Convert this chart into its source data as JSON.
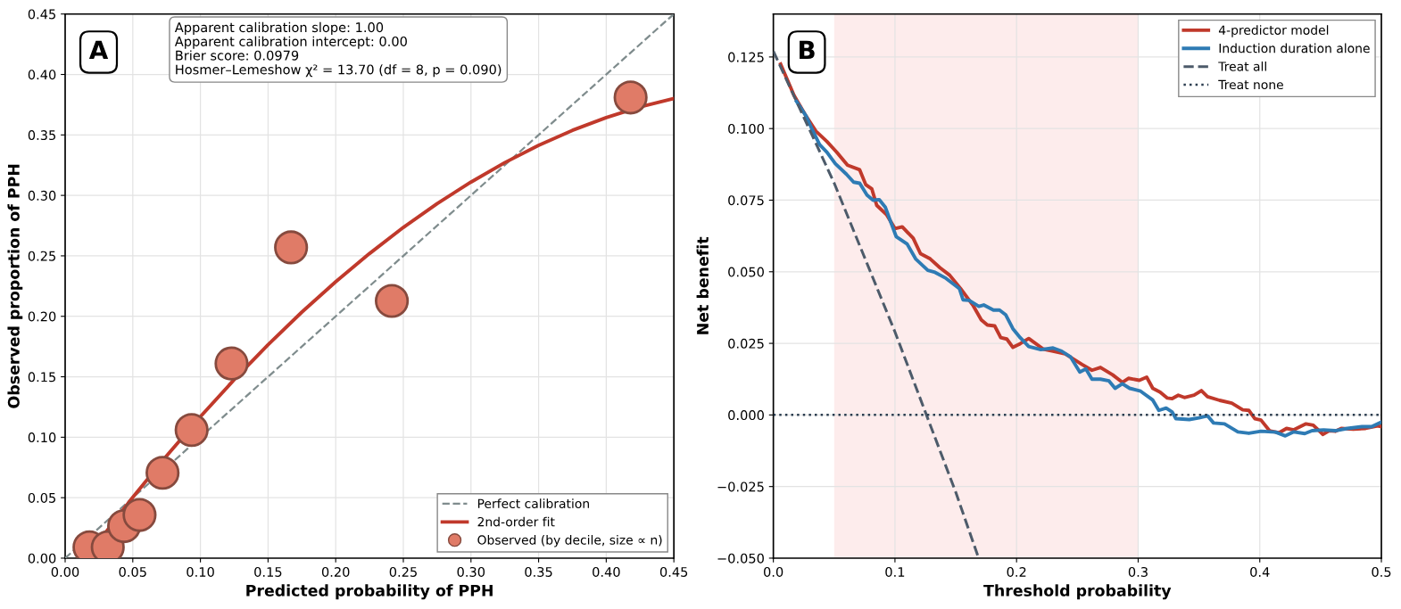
{
  "chart_data": [
    {
      "type": "scatter",
      "xlabel": "Predicted probability of PPH",
      "ylabel": "Observed proportion of PPH",
      "annotations": [
        "A",
        "Apparent calibration slope: 1.00\nApparent calibration intercept: 0.00\nBrier score: 0.0979\nHosmer–Lemeshow χ² = 13.70 (df = 8, p = 0.090)"
      ],
      "xlim": [
        0,
        0.45
      ],
      "ylim": [
        0,
        0.45
      ],
      "xticks": [
        {
          "value": 0,
          "label": "0.00"
        },
        {
          "value": 0.05,
          "label": "0.05"
        },
        {
          "value": 0.1,
          "label": "0.10"
        },
        {
          "value": 0.15,
          "label": "0.15"
        },
        {
          "value": 0.2,
          "label": "0.20"
        },
        {
          "value": 0.25,
          "label": "0.25"
        },
        {
          "value": 0.3,
          "label": "0.30"
        },
        {
          "value": 0.35,
          "label": "0.35"
        },
        {
          "value": 0.4,
          "label": "0.40"
        },
        {
          "value": 0.45,
          "label": "0.45"
        }
      ],
      "yticks": [
        {
          "value": 0,
          "label": "0.00"
        },
        {
          "value": 0.05,
          "label": "0.05"
        },
        {
          "value": 0.1,
          "label": "0.10"
        },
        {
          "value": 0.15,
          "label": "0.15"
        },
        {
          "value": 0.2,
          "label": "0.20"
        },
        {
          "value": 0.25,
          "label": "0.25"
        },
        {
          "value": 0.3,
          "label": "0.30"
        },
        {
          "value": 0.35,
          "label": "0.35"
        },
        {
          "value": 0.4,
          "label": "0.40"
        },
        {
          "value": 0.45,
          "label": "0.45"
        }
      ],
      "grid": true,
      "legend": "bottom right",
      "series": [
        {
          "name": "Perfect calibration",
          "type": "line",
          "line_style": "dashed",
          "color": "#7f8c8d",
          "x": [
            0,
            0.45
          ],
          "values": [
            0,
            0.45
          ]
        },
        {
          "name": "2nd-order fit",
          "type": "line",
          "line_style": "solid",
          "color": "#c0392b",
          "x": [
            0.02,
            0.05,
            0.075,
            0.1,
            0.125,
            0.15,
            0.175,
            0.2,
            0.225,
            0.25,
            0.275,
            0.3,
            0.325,
            0.35,
            0.375,
            0.4,
            0.425,
            0.45
          ],
          "values": [
            0.0068,
            0.0503,
            0.0846,
            0.117,
            0.1477,
            0.1765,
            0.2035,
            0.2286,
            0.2519,
            0.2735,
            0.2932,
            0.311,
            0.3271,
            0.3414,
            0.3538,
            0.3643,
            0.3732,
            0.3801
          ]
        },
        {
          "name": "Observed (by decile, size ∝ n)",
          "type": "scatter",
          "marker": "circle",
          "color": "#e07b67",
          "x": [
            0.018,
            0.0315,
            0.0436,
            0.055,
            0.072,
            0.0935,
            0.123,
            0.167,
            0.2415,
            0.418
          ],
          "values": [
            0.009,
            0.009,
            0.0265,
            0.0357,
            0.0706,
            0.106,
            0.161,
            0.257,
            0.2127,
            0.381
          ]
        }
      ]
    },
    {
      "type": "line",
      "xlabel": "Threshold probability",
      "ylabel": "Net benefit",
      "annotations": [
        "B"
      ],
      "xlim": [
        0,
        0.5
      ],
      "ylim": [
        -0.05,
        0.14
      ],
      "xticks": [
        {
          "value": 0,
          "label": "0.0"
        },
        {
          "value": 0.1,
          "label": "0.1"
        },
        {
          "value": 0.2,
          "label": "0.2"
        },
        {
          "value": 0.3,
          "label": "0.3"
        },
        {
          "value": 0.4,
          "label": "0.4"
        },
        {
          "value": 0.5,
          "label": "0.5"
        }
      ],
      "yticks": [
        {
          "value": -0.05,
          "label": "−0.050"
        },
        {
          "value": -0.025,
          "label": "−0.025"
        },
        {
          "value": 0,
          "label": "0.000"
        },
        {
          "value": 0.025,
          "label": "0.025"
        },
        {
          "value": 0.05,
          "label": "0.050"
        },
        {
          "value": 0.075,
          "label": "0.075"
        },
        {
          "value": 0.1,
          "label": "0.100"
        },
        {
          "value": 0.125,
          "label": "0.125"
        }
      ],
      "grid": true,
      "legend": "top right",
      "bands": [
        {
          "axis": "x",
          "from": 0.05,
          "to": 0.3,
          "color": "#fdecec"
        }
      ],
      "series": [
        {
          "name": "4-predictor model",
          "line_style": "solid",
          "color": "#c0392b",
          "x": [
            0.006,
            0.017,
            0.027,
            0.035,
            0.044,
            0.052,
            0.061,
            0.071,
            0.076,
            0.081,
            0.085,
            0.093,
            0.1,
            0.106,
            0.115,
            0.121,
            0.129,
            0.137,
            0.145,
            0.154,
            0.164,
            0.171,
            0.176,
            0.182,
            0.187,
            0.192,
            0.197,
            0.203,
            0.21,
            0.222,
            0.23,
            0.24,
            0.254,
            0.262,
            0.269,
            0.279,
            0.287,
            0.292,
            0.301,
            0.307,
            0.312,
            0.318,
            0.324,
            0.328,
            0.333,
            0.338,
            0.346,
            0.352,
            0.357,
            0.367,
            0.377,
            0.386,
            0.391,
            0.396,
            0.401,
            0.408,
            0.416,
            0.422,
            0.428,
            0.438,
            0.444,
            0.452,
            0.457,
            0.462,
            0.467,
            0.477,
            0.487,
            0.497,
            0.5
          ],
          "values": [
            0.1225,
            0.1116,
            0.1043,
            0.0991,
            0.0955,
            0.0918,
            0.0872,
            0.0856,
            0.0804,
            0.0789,
            0.0732,
            0.07,
            0.0651,
            0.0657,
            0.0617,
            0.0563,
            0.0545,
            0.0514,
            0.0488,
            0.0441,
            0.0384,
            0.0332,
            0.0314,
            0.0311,
            0.027,
            0.0265,
            0.0236,
            0.0249,
            0.0267,
            0.023,
            0.0223,
            0.0213,
            0.0176,
            0.0156,
            0.0166,
            0.014,
            0.0114,
            0.0128,
            0.0121,
            0.0132,
            0.0093,
            0.008,
            0.0059,
            0.0057,
            0.0069,
            0.0061,
            0.0069,
            0.0085,
            0.0064,
            0.0051,
            0.0041,
            0.0018,
            0.0016,
            -0.0013,
            -0.0018,
            -0.0055,
            -0.0062,
            -0.0047,
            -0.0052,
            -0.0031,
            -0.0036,
            -0.0068,
            -0.0055,
            -0.0057,
            -0.0047,
            -0.005,
            -0.0047,
            -0.0038,
            -0.0041
          ]
        },
        {
          "name": "Induction duration alone",
          "line_style": "solid",
          "color": "#2e7bb4",
          "x": [
            0.019,
            0.027,
            0.032,
            0.038,
            0.044,
            0.051,
            0.06,
            0.066,
            0.071,
            0.077,
            0.082,
            0.087,
            0.092,
            0.096,
            0.101,
            0.11,
            0.117,
            0.127,
            0.133,
            0.142,
            0.149,
            0.153,
            0.156,
            0.161,
            0.169,
            0.173,
            0.181,
            0.186,
            0.191,
            0.197,
            0.203,
            0.21,
            0.22,
            0.23,
            0.237,
            0.2445,
            0.252,
            0.257,
            0.262,
            0.269,
            0.276,
            0.281,
            0.287,
            0.293,
            0.302,
            0.312,
            0.317,
            0.323,
            0.328,
            0.331,
            0.342,
            0.35,
            0.357,
            0.362,
            0.371,
            0.382,
            0.391,
            0.401,
            0.413,
            0.421,
            0.428,
            0.437,
            0.443,
            0.4525,
            0.462,
            0.472,
            0.484,
            0.492,
            0.5
          ],
          "values": [
            0.1095,
            0.1043,
            0.0996,
            0.0944,
            0.0918,
            0.0877,
            0.0841,
            0.0813,
            0.0809,
            0.0768,
            0.075,
            0.0752,
            0.0726,
            0.068,
            0.0623,
            0.0597,
            0.0545,
            0.0505,
            0.0498,
            0.0477,
            0.0454,
            0.0441,
            0.0402,
            0.04,
            0.0379,
            0.0384,
            0.0366,
            0.0366,
            0.035,
            0.0301,
            0.027,
            0.0239,
            0.0228,
            0.0234,
            0.0223,
            0.0202,
            0.015,
            0.0161,
            0.0125,
            0.0125,
            0.0119,
            0.0093,
            0.0109,
            0.0093,
            0.0083,
            0.0052,
            0.0016,
            0.0024,
            0.001,
            -0.0013,
            -0.0016,
            -0.001,
            -0.0003,
            -0.0028,
            -0.0031,
            -0.0059,
            -0.0064,
            -0.0057,
            -0.006,
            -0.0073,
            -0.0059,
            -0.0065,
            -0.0055,
            -0.0052,
            -0.0055,
            -0.0047,
            -0.0041,
            -0.0041,
            -0.0025
          ]
        },
        {
          "name": "Treat all",
          "line_style": "dashed",
          "color": "#4d5b6a",
          "x": [
            0,
            0.05,
            0.1,
            0.15,
            0.168
          ],
          "values": [
            0.127,
            0.081,
            0.029,
            -0.027,
            -0.049
          ]
        },
        {
          "name": "Treat none",
          "line_style": "dotted",
          "color": "#2c3e50",
          "x": [
            0,
            0.5
          ],
          "values": [
            0,
            0
          ]
        }
      ]
    }
  ]
}
